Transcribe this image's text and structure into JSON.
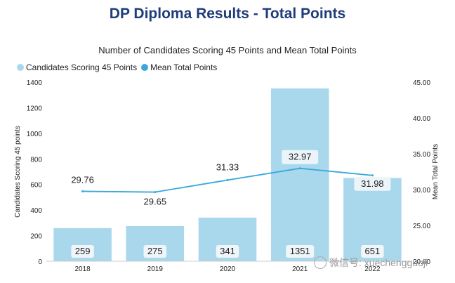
{
  "page": {
    "title": "DP Diploma Results - Total Points"
  },
  "chart_data": {
    "type": "bar",
    "title": "Number of Candidates Scoring 45 Points and Mean Total Points",
    "categories": [
      "2018",
      "2019",
      "2020",
      "2021",
      "2022"
    ],
    "series": [
      {
        "name": "Candidates Scoring 45 Points",
        "type": "bar",
        "axis": "left",
        "values": [
          259,
          275,
          341,
          1351,
          651
        ],
        "color": "#a9d8ec"
      },
      {
        "name": "Mean Total Points",
        "type": "line",
        "axis": "right",
        "values": [
          29.76,
          29.65,
          31.33,
          32.97,
          31.98
        ],
        "color": "#3aa8dc"
      }
    ],
    "y_left": {
      "label": "Candidates Scoring 45 points",
      "range": [
        0,
        1400
      ],
      "ticks": [
        "0",
        "200",
        "400",
        "600",
        "800",
        "1000",
        "1200",
        "1400"
      ]
    },
    "y_right": {
      "label": "Mean Total Points",
      "range": [
        20,
        45
      ],
      "ticks": [
        "20.00",
        "25.00",
        "30.00",
        "35.00",
        "40.00",
        "45.00"
      ]
    },
    "bar_labels": [
      "259",
      "275",
      "341",
      "1351",
      "651"
    ],
    "line_labels": [
      "29.76",
      "29.65",
      "31.33",
      "32.97",
      "31.98"
    ],
    "legend_position": "top-left",
    "grid": false
  },
  "watermark": {
    "text": "微信号: xuechengguoji",
    "icon": "wechat-icon"
  }
}
